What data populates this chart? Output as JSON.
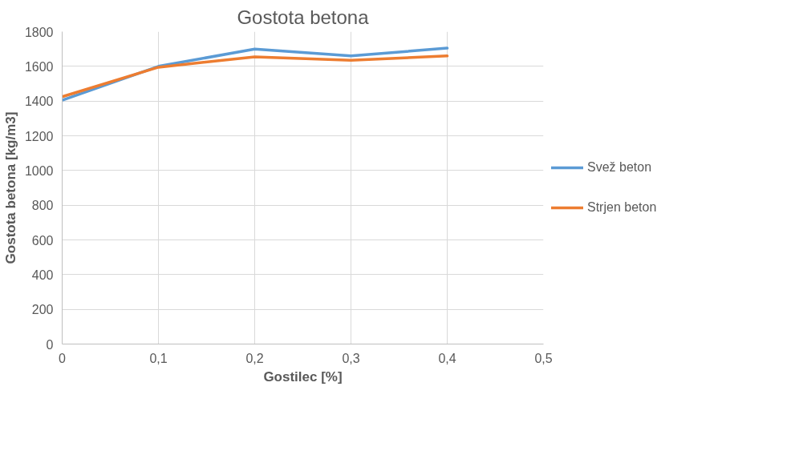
{
  "chart_data": {
    "type": "line",
    "title": "Gostota betona",
    "xlabel": "Gostilec [%]",
    "ylabel": "Gostota betona [kg/m3]",
    "x": [
      0,
      0.1,
      0.2,
      0.3,
      0.4
    ],
    "series": [
      {
        "name": "Svež beton",
        "color": "#5b9bd5",
        "values": [
          1405,
          1600,
          1700,
          1660,
          1705
        ]
      },
      {
        "name": "Strjen beton",
        "color": "#ed7d31",
        "values": [
          1425,
          1595,
          1655,
          1635,
          1660
        ]
      }
    ],
    "xlim": [
      0,
      0.5
    ],
    "xticks": [
      0,
      {
        "value": 0.1,
        "label": "0,1"
      },
      {
        "value": 0.2,
        "label": "0,2"
      },
      {
        "value": 0.3,
        "label": "0,3"
      },
      {
        "value": 0.4,
        "label": "0,4"
      },
      {
        "value": 0.5,
        "label": "0,5"
      }
    ],
    "ylim": [
      0,
      1800
    ],
    "yticks": [
      0,
      200,
      400,
      600,
      800,
      1000,
      1200,
      1400,
      1600,
      1800
    ],
    "grid": true,
    "legend": "right",
    "marker": "none",
    "line_style": "solid"
  }
}
